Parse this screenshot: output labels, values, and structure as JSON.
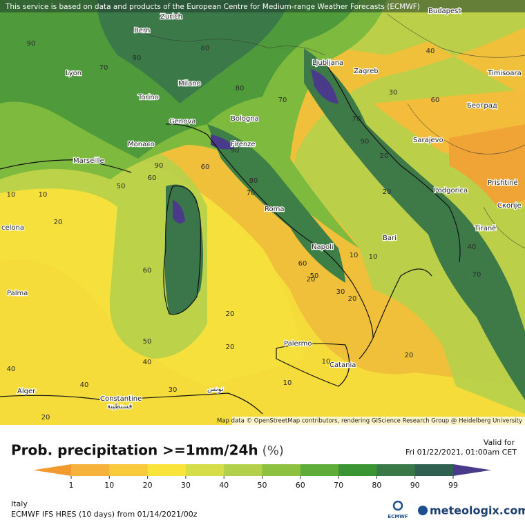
{
  "header": {
    "notice": "This service is based on data and products of the European Centre for Medium-range Weather Forecasts (ECMWF)"
  },
  "map": {
    "attribution": "Map data © OpenStreetMap contributors, rendering GIScience Research Group @ Heidelberg University",
    "cities": [
      "Bern",
      "Zurich",
      "Budapest",
      "Lyon",
      "Milano",
      "Ljubljana",
      "Zagreb",
      "Timisoara",
      "Torino",
      "Bologna",
      "Београд",
      "Genova",
      "Monaco",
      "Firenze",
      "Sarajevo",
      "Marseille",
      "Podgorica",
      "Prishtinë",
      "Скопје",
      "Roma",
      "Tiranë",
      "celona",
      "Bari",
      "Napoli",
      "Palma",
      "Palermo",
      "Catania",
      "Alger",
      "تونس",
      "Constantine",
      "قسنطينة"
    ],
    "contour_labels": [
      90,
      90,
      80,
      40,
      70,
      30,
      70,
      80,
      60,
      70,
      90,
      20,
      90,
      60,
      10,
      50,
      20,
      90,
      80,
      60,
      10,
      70,
      40,
      60,
      20,
      60,
      50,
      30,
      10,
      20,
      70,
      20,
      50,
      40,
      20,
      10,
      20,
      40,
      10,
      30,
      40,
      20,
      20,
      10
    ]
  },
  "legend": {
    "title": "Prob. precipitation >=1mm/24h",
    "unit": "(%)",
    "ticks": [
      1,
      10,
      20,
      30,
      40,
      50,
      60,
      70,
      80,
      90,
      99
    ],
    "colors": [
      "#f39a2e",
      "#f6b23a",
      "#f9cb3c",
      "#f8e43a",
      "#d5de48",
      "#b2d04a",
      "#8cc23f",
      "#5fad38",
      "#3a9433",
      "#3b7848",
      "#2f6050",
      "#4a3a8a"
    ]
  },
  "valid": {
    "label": "Valid for",
    "time": "Fri 01/22/2021, 01:00am CET"
  },
  "footer": {
    "region": "Italy",
    "model": "ECMWF IFS HRES (10 days) from 01/14/2021/00z",
    "ecmwf": "ECMWF",
    "brand": "meteologix.com"
  }
}
